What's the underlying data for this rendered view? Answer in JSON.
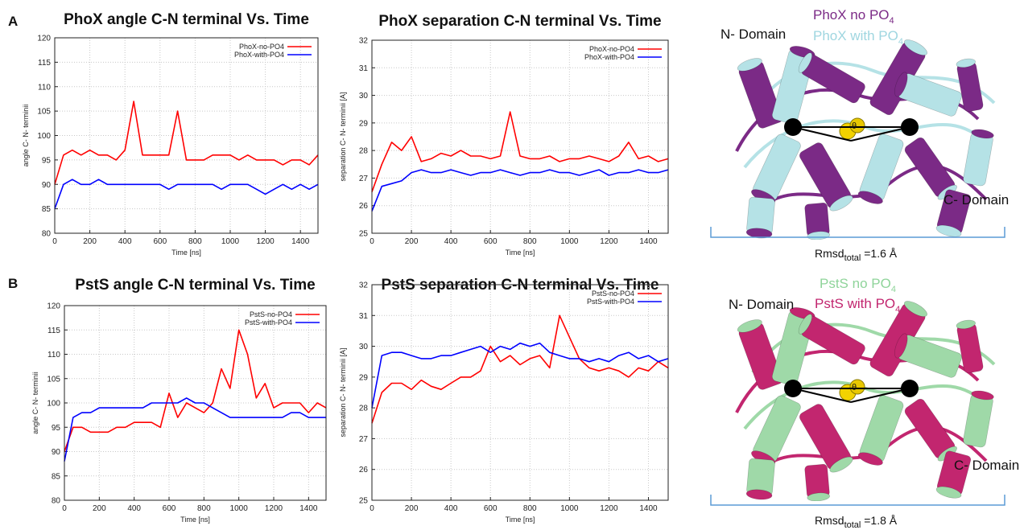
{
  "panel_labels": [
    "A",
    "B"
  ],
  "chart_data": [
    {
      "type": "line",
      "title": "PhoX angle C-N terminal Vs. Time",
      "x_label": "Time [ns]",
      "y_label": "angle C- N- terminii",
      "x": [
        0,
        50,
        100,
        150,
        200,
        250,
        300,
        350,
        400,
        450,
        500,
        550,
        600,
        650,
        700,
        750,
        800,
        850,
        900,
        950,
        1000,
        1050,
        1100,
        1150,
        1200,
        1250,
        1300,
        1350,
        1400,
        1450,
        1500
      ],
      "xlim": [
        0,
        1500
      ],
      "xticks": [
        0,
        200,
        400,
        600,
        800,
        1000,
        1200,
        1400
      ],
      "ylim": [
        80,
        120
      ],
      "yticks": [
        80,
        85,
        90,
        95,
        100,
        105,
        110,
        115,
        120
      ],
      "grid": true,
      "legend": "upper right",
      "series": [
        {
          "name": "PhoX-no-PO4",
          "color": "#ff0000",
          "values": [
            90,
            96,
            97,
            96,
            97,
            96,
            96,
            95,
            97,
            107,
            96,
            96,
            96,
            96,
            105,
            95,
            95,
            95,
            96,
            96,
            96,
            95,
            96,
            95,
            95,
            95,
            94,
            95,
            95,
            94,
            96
          ]
        },
        {
          "name": "PhoX-with-PO4",
          "color": "#0000ff",
          "values": [
            85,
            90,
            91,
            90,
            90,
            91,
            90,
            90,
            90,
            90,
            90,
            90,
            90,
            89,
            90,
            90,
            90,
            90,
            90,
            89,
            90,
            90,
            90,
            89,
            88,
            89,
            90,
            89,
            90,
            89,
            90
          ]
        }
      ]
    },
    {
      "type": "line",
      "title": "PhoX separation C-N terminal Vs. Time",
      "x_label": "Time [ns]",
      "y_label": "separation C- N- terminii [A]",
      "x": [
        0,
        50,
        100,
        150,
        200,
        250,
        300,
        350,
        400,
        450,
        500,
        550,
        600,
        650,
        700,
        750,
        800,
        850,
        900,
        950,
        1000,
        1050,
        1100,
        1150,
        1200,
        1250,
        1300,
        1350,
        1400,
        1450,
        1500
      ],
      "xlim": [
        0,
        1500
      ],
      "xticks": [
        0,
        200,
        400,
        600,
        800,
        1000,
        1200,
        1400
      ],
      "ylim": [
        25,
        32
      ],
      "yticks": [
        25,
        26,
        27,
        28,
        29,
        30,
        31,
        32
      ],
      "grid": true,
      "legend": "upper right",
      "series": [
        {
          "name": "PhoX-no-PO4",
          "color": "#ff0000",
          "values": [
            26.5,
            27.5,
            28.3,
            28.0,
            28.5,
            27.6,
            27.7,
            27.9,
            27.8,
            28.0,
            27.8,
            27.8,
            27.7,
            27.8,
            29.4,
            27.8,
            27.7,
            27.7,
            27.8,
            27.6,
            27.7,
            27.7,
            27.8,
            27.7,
            27.6,
            27.8,
            28.3,
            27.7,
            27.8,
            27.6,
            27.7
          ]
        },
        {
          "name": "PhoX-with-PO4",
          "color": "#0000ff",
          "values": [
            25.8,
            26.7,
            26.8,
            26.9,
            27.2,
            27.3,
            27.2,
            27.2,
            27.3,
            27.2,
            27.1,
            27.2,
            27.2,
            27.3,
            27.2,
            27.1,
            27.2,
            27.2,
            27.3,
            27.2,
            27.2,
            27.1,
            27.2,
            27.3,
            27.1,
            27.2,
            27.2,
            27.3,
            27.2,
            27.2,
            27.3
          ]
        }
      ]
    },
    {
      "type": "line",
      "title": "PstS angle C-N terminal Vs. Time",
      "x_label": "Time [ns]",
      "y_label": "angle C- N- terminii",
      "x": [
        0,
        50,
        100,
        150,
        200,
        250,
        300,
        350,
        400,
        450,
        500,
        550,
        600,
        650,
        700,
        750,
        800,
        850,
        900,
        950,
        1000,
        1050,
        1100,
        1150,
        1200,
        1250,
        1300,
        1350,
        1400,
        1450,
        1500
      ],
      "xlim": [
        0,
        1500
      ],
      "xticks": [
        0,
        200,
        400,
        600,
        800,
        1000,
        1200,
        1400
      ],
      "ylim": [
        80,
        120
      ],
      "yticks": [
        80,
        85,
        90,
        95,
        100,
        105,
        110,
        115,
        120
      ],
      "grid": true,
      "legend": "upper right",
      "series": [
        {
          "name": "PstS-no-PO4",
          "color": "#ff0000",
          "values": [
            90,
            95,
            95,
            94,
            94,
            94,
            95,
            95,
            96,
            96,
            96,
            95,
            102,
            97,
            100,
            99,
            98,
            100,
            107,
            103,
            115,
            110,
            101,
            104,
            99,
            100,
            100,
            100,
            98,
            100,
            99
          ]
        },
        {
          "name": "PstS-with-PO4",
          "color": "#0000ff",
          "values": [
            88,
            97,
            98,
            98,
            99,
            99,
            99,
            99,
            99,
            99,
            100,
            100,
            100,
            100,
            101,
            100,
            100,
            99,
            98,
            97,
            97,
            97,
            97,
            97,
            97,
            97,
            98,
            98,
            97,
            97,
            97
          ]
        }
      ]
    },
    {
      "type": "line",
      "title": "PstS separation C-N terminal Vs. Time",
      "x_label": "Time [ns]",
      "y_label": "separation C- N- terminii [A]",
      "x": [
        0,
        50,
        100,
        150,
        200,
        250,
        300,
        350,
        400,
        450,
        500,
        550,
        600,
        650,
        700,
        750,
        800,
        850,
        900,
        950,
        1000,
        1050,
        1100,
        1150,
        1200,
        1250,
        1300,
        1350,
        1400,
        1450,
        1500
      ],
      "xlim": [
        0,
        1500
      ],
      "xticks": [
        0,
        200,
        400,
        600,
        800,
        1000,
        1200,
        1400
      ],
      "ylim": [
        25,
        32
      ],
      "yticks": [
        25,
        26,
        27,
        28,
        29,
        30,
        31,
        32
      ],
      "grid": true,
      "legend": "upper right",
      "series": [
        {
          "name": "PstS-no-PO4",
          "color": "#ff0000",
          "values": [
            27.5,
            28.5,
            28.8,
            28.8,
            28.6,
            28.9,
            28.7,
            28.6,
            28.8,
            29.0,
            29.0,
            29.2,
            30.0,
            29.5,
            29.7,
            29.4,
            29.6,
            29.7,
            29.3,
            31.0,
            30.3,
            29.6,
            29.3,
            29.2,
            29.3,
            29.2,
            29.0,
            29.3,
            29.2,
            29.5,
            29.3
          ]
        },
        {
          "name": "PstS-with-PO4",
          "color": "#0000ff",
          "values": [
            28.0,
            29.7,
            29.8,
            29.8,
            29.7,
            29.6,
            29.6,
            29.7,
            29.7,
            29.8,
            29.9,
            30.0,
            29.8,
            30.0,
            29.9,
            30.1,
            30.0,
            30.1,
            29.8,
            29.7,
            29.6,
            29.6,
            29.5,
            29.6,
            29.5,
            29.7,
            29.8,
            29.6,
            29.7,
            29.5,
            29.6
          ]
        }
      ]
    }
  ],
  "structures": [
    {
      "n_domain": "N- Domain",
      "c_domain": "C- Domain",
      "theta": "θ",
      "legend": [
        {
          "text": "PhoX no PO",
          "sub": "4"
        },
        {
          "text": "PhoX with PO",
          "sub": "4"
        }
      ],
      "rmsd": {
        "text": "Rmsd",
        "sub": "total",
        "value": " =1.6 Å"
      }
    },
    {
      "n_domain": "N- Domain",
      "c_domain": "C- Domain",
      "theta": "θ",
      "legend": [
        {
          "text": "PstS no PO",
          "sub": "4"
        },
        {
          "text": "PstS with PO",
          "sub": "4"
        }
      ],
      "rmsd": {
        "text": "Rmsd",
        "sub": "total",
        "value": " =1.8 Å"
      }
    }
  ]
}
